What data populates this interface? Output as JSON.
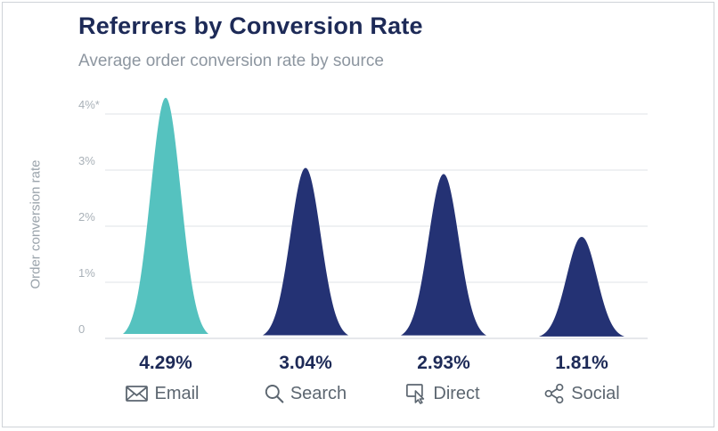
{
  "header": {
    "title": "Referrers by Conversion Rate",
    "subtitle": "Average order conversion rate by source"
  },
  "chart_data": {
    "type": "area",
    "title": "Referrers by Conversion Rate",
    "subtitle": "Average order conversion rate by source",
    "ylabel": "Order conversion rate",
    "ylim": [
      0,
      4
    ],
    "yticks": [
      "0",
      "1%",
      "2%",
      "3%",
      "4%*"
    ],
    "grid": true,
    "categories": [
      "Email",
      "Search",
      "Direct",
      "Social"
    ],
    "values": [
      4.29,
      3.04,
      2.93,
      1.81
    ],
    "value_labels": [
      "4.29%",
      "3.04%",
      "2.93%",
      "1.81%"
    ],
    "icons": [
      "envelope-icon",
      "magnifier-icon",
      "cursor-icon",
      "share-icon"
    ],
    "colors": [
      "#55c2bf",
      "#243274",
      "#243274",
      "#243274"
    ],
    "grid_color": "#dfe3e7",
    "label_color": "#1d2a57"
  }
}
